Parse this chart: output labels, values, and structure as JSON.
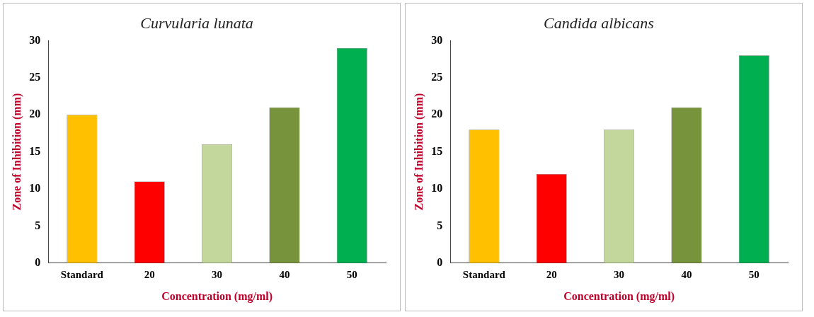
{
  "chart_data": [
    {
      "type": "bar",
      "title": "Curvularia lunata",
      "xlabel": "Concentration (mg/ml)",
      "ylabel": "Zone of Inhibition (mm)",
      "categories": [
        "Standard",
        "20",
        "30",
        "40",
        "50"
      ],
      "values": [
        20,
        11,
        16,
        21,
        29
      ],
      "colors": [
        "#ffc000",
        "#ff0000",
        "#c3d69b",
        "#77933c",
        "#00b050"
      ],
      "ylim": [
        0,
        30
      ],
      "yticks": [
        0,
        5,
        10,
        15,
        20,
        25,
        30
      ],
      "grid": false,
      "legend": false
    },
    {
      "type": "bar",
      "title": "Candida albicans",
      "xlabel": "Concentration (mg/ml)",
      "ylabel": "Zone of Inhibition (mm)",
      "categories": [
        "Standard",
        "20",
        "30",
        "40",
        "50"
      ],
      "values": [
        18,
        12,
        18,
        21,
        28
      ],
      "colors": [
        "#ffc000",
        "#ff0000",
        "#c3d69b",
        "#77933c",
        "#00b050"
      ],
      "ylim": [
        0,
        30
      ],
      "yticks": [
        0,
        5,
        10,
        15,
        20,
        25,
        30
      ],
      "grid": false,
      "legend": false
    }
  ]
}
